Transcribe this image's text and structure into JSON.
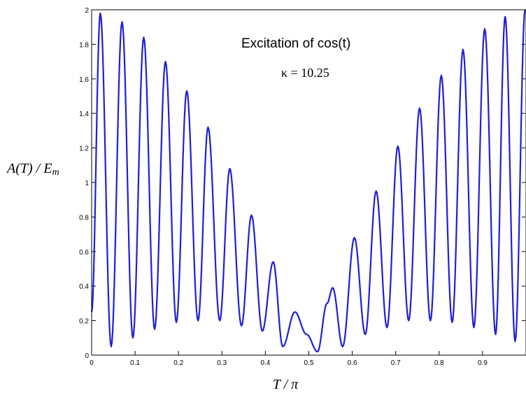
{
  "chart_data": {
    "type": "line",
    "title": "",
    "xlabel": "T / π",
    "ylabel": "A(T) / Em",
    "ylabel_parts": {
      "main": "A(T) / E",
      "sub": "m"
    },
    "xlim": [
      0,
      1
    ],
    "ylim": [
      0,
      2
    ],
    "x_ticks": [
      "0",
      "0.1",
      "0.2",
      "0.3",
      "0.4",
      "0.5",
      "0.6",
      "0.7",
      "0.8",
      "0.9"
    ],
    "y_ticks": [
      "0",
      "0.2",
      "0.4",
      "0.6",
      "0.8",
      "1",
      "1.2",
      "1.4",
      "1.6",
      "1.8",
      "2"
    ],
    "grid": false,
    "annotations": {
      "line1": "Excitation of cos(t)",
      "line2": "κ = 10.25"
    },
    "series": [
      {
        "color": "#1f1fd6",
        "x": [
          0.0,
          0.02,
          0.045,
          0.07,
          0.095,
          0.12,
          0.145,
          0.17,
          0.195,
          0.219,
          0.245,
          0.268,
          0.295,
          0.318,
          0.345,
          0.368,
          0.393,
          0.418,
          0.44,
          0.468,
          0.495,
          0.52,
          0.542,
          0.555,
          0.578,
          0.605,
          0.63,
          0.655,
          0.68,
          0.705,
          0.73,
          0.755,
          0.78,
          0.805,
          0.83,
          0.855,
          0.88,
          0.905,
          0.93,
          0.952,
          0.975,
          0.998
        ],
        "y": [
          0.25,
          1.98,
          0.05,
          1.93,
          0.1,
          1.84,
          0.15,
          1.7,
          0.19,
          1.53,
          0.2,
          1.32,
          0.2,
          1.08,
          0.17,
          0.81,
          0.14,
          0.54,
          0.05,
          0.25,
          0.12,
          0.02,
          0.3,
          0.39,
          0.05,
          0.68,
          0.12,
          0.95,
          0.16,
          1.21,
          0.2,
          1.43,
          0.2,
          1.62,
          0.19,
          1.77,
          0.16,
          1.89,
          0.12,
          1.96,
          0.08,
          2.0
        ]
      }
    ]
  }
}
